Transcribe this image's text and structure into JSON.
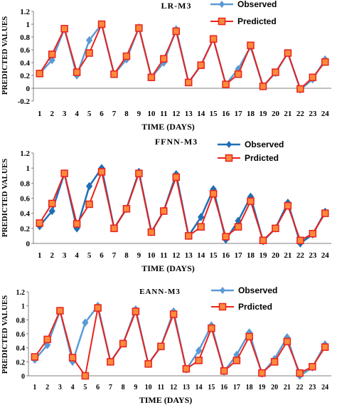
{
  "chart_data": [
    {
      "type": "line",
      "title": "LR-M3",
      "xlabel": "TIME (DAYS)",
      "ylabel": "PREDICTED VALUES",
      "ylim": [
        -0.2,
        1.2
      ],
      "yticks": [
        "-0.2",
        "0",
        "0.2",
        "0.4",
        "0.6",
        "0.8",
        "1",
        "1.2"
      ],
      "x": [
        1,
        2,
        3,
        4,
        5,
        6,
        7,
        8,
        9,
        10,
        11,
        12,
        13,
        14,
        15,
        16,
        17,
        18,
        19,
        20,
        21,
        22,
        23,
        24
      ],
      "legend": "top-right",
      "grid": false,
      "series": [
        {
          "name": "Observed",
          "color": "#5b9bd5",
          "marker": "diamond",
          "values": [
            0.23,
            0.44,
            0.93,
            0.2,
            0.75,
            1.0,
            0.22,
            0.45,
            0.95,
            0.17,
            0.4,
            0.92,
            0.09,
            0.36,
            0.77,
            0.06,
            0.3,
            0.65,
            0.03,
            0.24,
            0.55,
            -0.02,
            0.14,
            0.45
          ]
        },
        {
          "name": "Predicted",
          "color": "#e8231d",
          "marker": "square",
          "values": [
            0.23,
            0.53,
            0.93,
            0.25,
            0.55,
            1.0,
            0.22,
            0.5,
            0.94,
            0.17,
            0.46,
            0.89,
            0.09,
            0.36,
            0.77,
            0.06,
            0.22,
            0.67,
            0.03,
            0.25,
            0.55,
            -0.01,
            0.17,
            0.41
          ]
        }
      ]
    },
    {
      "type": "line",
      "title": "FFNN-M3",
      "xlabel": "TIME (DAYS)",
      "ylabel": "PREDICTED VALUES",
      "ylim": [
        0,
        1.2
      ],
      "yticks": [
        "0",
        "0.2",
        "0.4",
        "0.6",
        "0.8",
        "1",
        "1.2"
      ],
      "x": [
        1,
        2,
        3,
        4,
        5,
        6,
        7,
        8,
        9,
        10,
        11,
        12,
        13,
        14,
        15,
        16,
        17,
        18,
        19,
        20,
        21,
        22,
        23,
        24
      ],
      "legend": "top-right",
      "grid": false,
      "series": [
        {
          "name": "Observed",
          "color": "#1f6fb5",
          "marker": "diamond",
          "values": [
            0.23,
            0.43,
            0.93,
            0.2,
            0.76,
            1.0,
            0.2,
            0.46,
            0.95,
            0.15,
            0.43,
            0.92,
            0.1,
            0.35,
            0.72,
            0.05,
            0.3,
            0.62,
            0.03,
            0.2,
            0.54,
            0.0,
            0.12,
            0.42
          ]
        },
        {
          "name": "Prdicted",
          "color": "#e8231d",
          "marker": "square",
          "values": [
            0.27,
            0.53,
            0.93,
            0.26,
            0.52,
            0.95,
            0.2,
            0.46,
            0.93,
            0.15,
            0.43,
            0.88,
            0.1,
            0.22,
            0.66,
            0.09,
            0.22,
            0.56,
            0.04,
            0.2,
            0.5,
            0.04,
            0.13,
            0.4
          ]
        }
      ]
    },
    {
      "type": "line",
      "title": "EANN-M3",
      "xlabel": "TIME (DAYS)",
      "ylabel": "PREDICTED VALUES",
      "ylim": [
        0,
        1.2
      ],
      "yticks": [
        "0",
        "0.2",
        "0.4",
        "0.6",
        "0.8",
        "1",
        "1.2"
      ],
      "x": [
        1,
        2,
        3,
        4,
        5,
        6,
        7,
        8,
        9,
        10,
        11,
        12,
        13,
        14,
        15,
        16,
        17,
        18,
        19,
        20,
        21,
        22,
        23,
        24
      ],
      "legend": "top-right",
      "grid": false,
      "series": [
        {
          "name": "Observed",
          "color": "#5b9bd5",
          "marker": "diamond",
          "values": [
            0.23,
            0.44,
            0.93,
            0.2,
            0.76,
            1.0,
            0.2,
            0.46,
            0.95,
            0.17,
            0.42,
            0.92,
            0.09,
            0.36,
            0.72,
            0.06,
            0.3,
            0.62,
            0.03,
            0.24,
            0.55,
            0.0,
            0.12,
            0.45
          ]
        },
        {
          "name": "Prdicted",
          "color": "#e8231d",
          "marker": "square",
          "values": [
            0.27,
            0.52,
            0.93,
            0.26,
            0.0,
            0.97,
            0.2,
            0.46,
            0.92,
            0.17,
            0.42,
            0.88,
            0.1,
            0.22,
            0.68,
            0.07,
            0.22,
            0.56,
            0.04,
            0.2,
            0.49,
            0.04,
            0.13,
            0.41
          ]
        }
      ]
    }
  ]
}
